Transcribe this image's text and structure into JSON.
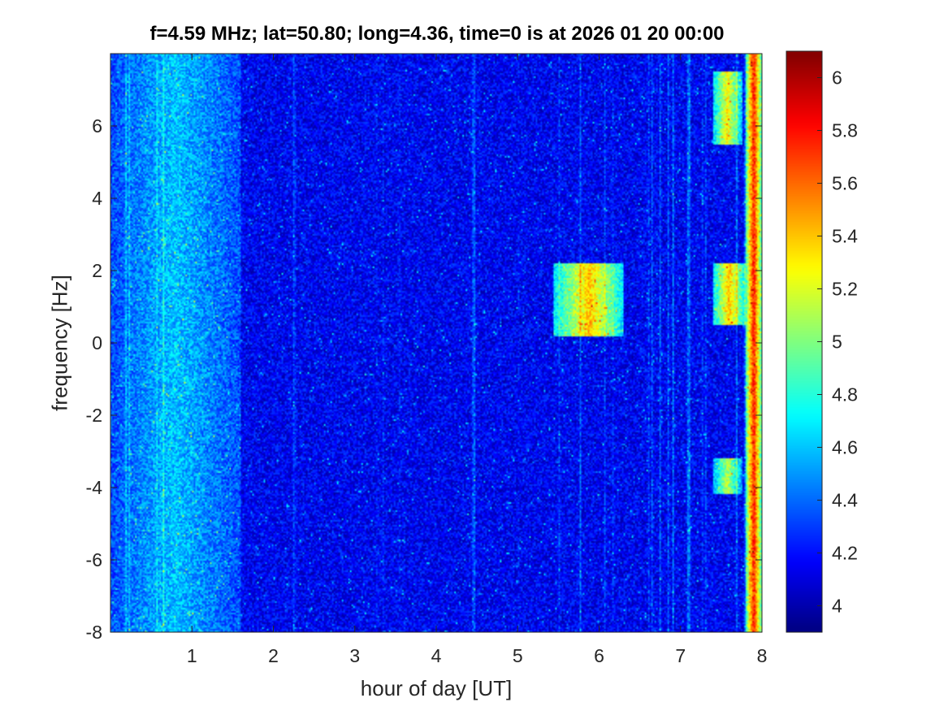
{
  "chart_data": {
    "type": "heatmap",
    "title": "f=4.59 MHz;  lat=50.80; long=4.36, time=0 is at 2026 01 20 00:00",
    "xlabel": "hour of day [UT]",
    "ylabel": "frequency [Hz]",
    "xlim": [
      0,
      8
    ],
    "ylim": [
      -8,
      8
    ],
    "x_ticks": [
      "1",
      "2",
      "3",
      "4",
      "5",
      "6",
      "7",
      "8"
    ],
    "y_ticks": [
      "-8",
      "-6",
      "-4",
      "-2",
      "0",
      "2",
      "4",
      "6"
    ],
    "colorbar": {
      "colormap": "jet",
      "clim": [
        3.9,
        6.1
      ],
      "ticks": [
        "4",
        "4.2",
        "4.4",
        "4.6",
        "4.8",
        "5",
        "5.2",
        "5.4",
        "5.6",
        "5.8",
        "6"
      ]
    },
    "background_level": 4.15,
    "features": [
      {
        "hour_range": [
          0.0,
          1.6
        ],
        "freq_range": [
          -8,
          8
        ],
        "level": 4.6
      },
      {
        "hour_range": [
          5.45,
          6.3
        ],
        "freq_range": [
          0.2,
          2.2
        ],
        "level": 5.4
      },
      {
        "hour_range": [
          7.4,
          7.75
        ],
        "freq_range": [
          5.5,
          7.5
        ],
        "level": 5.3
      },
      {
        "hour_range": [
          7.4,
          7.8
        ],
        "freq_range": [
          0.5,
          2.2
        ],
        "level": 5.4
      },
      {
        "hour_range": [
          7.4,
          7.75
        ],
        "freq_range": [
          -4.2,
          -3.2
        ],
        "level": 5.1
      },
      {
        "hour_range": [
          7.8,
          8.0
        ],
        "freq_range": [
          -8,
          8
        ],
        "level": 5.8
      }
    ]
  }
}
